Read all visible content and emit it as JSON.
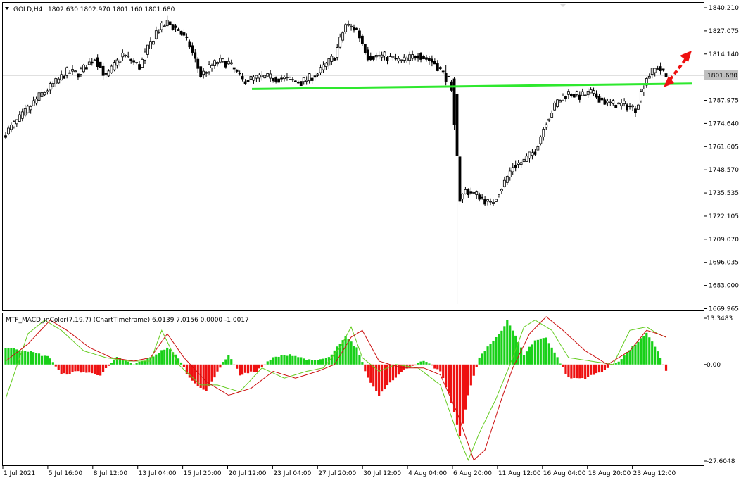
{
  "header": {
    "symbol": "GOLD,H4",
    "ohlc": "1802.630 1802.970 1801.160 1801.680",
    "menu_icon": "triangle-down-icon"
  },
  "indicator": {
    "label": "MTF_MACD_inColor(7,19,7) (ChartTimeframe) 6.0139 7.0156 0.0000 -1.0017"
  },
  "colors": {
    "bull": "#ffffff",
    "bear": "#000000",
    "wick": "#000000",
    "support_line": "#2ee82e",
    "arrow": "#ee1111",
    "hist_pos": "#18d018",
    "hist_neg": "#ee1111",
    "macd_line": "#66cc22",
    "signal_line": "#cc1111",
    "price_line": "#c0c0c0"
  },
  "chart_data": [
    {
      "type": "candlestick",
      "title": "GOLD,H4",
      "current_price": 1801.68,
      "current_price_label": "1801.680",
      "ylim": [
        1666.5,
        1842.5
      ],
      "y_ticks": [
        "1840.210",
        "1827.075",
        "1814.140",
        "1801.680",
        "1787.975",
        "1774.640",
        "1761.605",
        "1748.570",
        "1735.535",
        "1722.105",
        "1709.070",
        "1696.035",
        "1683.000",
        "1669.965"
      ],
      "x_ticks": [
        "1 Jul 2021",
        "5 Jul 16:00",
        "8 Jul 12:00",
        "13 Jul 04:00",
        "15 Jul 20:00",
        "20 Jul 12:00",
        "23 Jul 04:00",
        "27 Jul 20:00",
        "30 Jul 12:00",
        "4 Aug 04:00",
        "6 Aug 20:00",
        "11 Aug 12:00",
        "16 Aug 04:00",
        "18 Aug 20:00",
        "23 Aug 12:00"
      ],
      "anchors": [
        [
          0,
          1768
        ],
        [
          6,
          1778
        ],
        [
          12,
          1789
        ],
        [
          18,
          1797
        ],
        [
          22,
          1803
        ],
        [
          26,
          1802
        ],
        [
          32,
          1811
        ],
        [
          36,
          1800
        ],
        [
          42,
          1813
        ],
        [
          48,
          1806
        ],
        [
          54,
          1826
        ],
        [
          58,
          1831
        ],
        [
          62,
          1827
        ],
        [
          66,
          1818
        ],
        [
          70,
          1801
        ],
        [
          76,
          1809
        ],
        [
          80,
          1808
        ],
        [
          85,
          1798
        ],
        [
          92,
          1800
        ],
        [
          100,
          1799
        ],
        [
          106,
          1797
        ],
        [
          112,
          1802
        ],
        [
          118,
          1812
        ],
        [
          122,
          1830
        ],
        [
          126,
          1827
        ],
        [
          130,
          1812
        ],
        [
          136,
          1812
        ],
        [
          142,
          1809
        ],
        [
          148,
          1813
        ],
        [
          154,
          1808
        ],
        [
          157,
          1802
        ],
        [
          159,
          1798
        ],
        [
          160,
          1790
        ],
        [
          161,
          1772
        ],
        [
          162,
          1755
        ],
        [
          163,
          1730
        ],
        [
          165,
          1735
        ],
        [
          170,
          1732
        ],
        [
          174,
          1727
        ],
        [
          178,
          1737
        ],
        [
          182,
          1749
        ],
        [
          186,
          1752
        ],
        [
          190,
          1758
        ],
        [
          194,
          1775
        ],
        [
          198,
          1786
        ],
        [
          202,
          1791
        ],
        [
          206,
          1789
        ],
        [
          210,
          1791
        ],
        [
          216,
          1785
        ],
        [
          222,
          1784
        ],
        [
          226,
          1782
        ],
        [
          230,
          1800
        ],
        [
          234,
          1806
        ],
        [
          237,
          1800
        ]
      ],
      "support_line": {
        "start": [
          1800,
          0
        ],
        "end": [
          1778,
          115
        ]
      },
      "arrow_direction": "up"
    },
    {
      "type": "macd_histogram",
      "title": "MTF_MACD_inColor(7,19,7)",
      "ylim": [
        -29.5,
        15.0
      ],
      "y_ticks": [
        "13.3483",
        "0.00",
        "-27.6048"
      ],
      "hist_anchors": [
        [
          0,
          5
        ],
        [
          8,
          4
        ],
        [
          16,
          2
        ],
        [
          20,
          -3
        ],
        [
          26,
          -2
        ],
        [
          34,
          -3
        ],
        [
          40,
          2
        ],
        [
          46,
          0
        ],
        [
          52,
          2
        ],
        [
          58,
          5
        ],
        [
          62,
          2
        ],
        [
          66,
          -4
        ],
        [
          72,
          -8
        ],
        [
          76,
          -2
        ],
        [
          80,
          3
        ],
        [
          84,
          -3
        ],
        [
          90,
          -2
        ],
        [
          96,
          2
        ],
        [
          102,
          3
        ],
        [
          110,
          1
        ],
        [
          116,
          2
        ],
        [
          122,
          8
        ],
        [
          126,
          5
        ],
        [
          130,
          -4
        ],
        [
          134,
          -9
        ],
        [
          138,
          -5
        ],
        [
          144,
          -1
        ],
        [
          150,
          1
        ],
        [
          156,
          -2
        ],
        [
          160,
          -11
        ],
        [
          163,
          -21
        ],
        [
          166,
          -9
        ],
        [
          170,
          2
        ],
        [
          174,
          6
        ],
        [
          178,
          10
        ],
        [
          180,
          13
        ],
        [
          182,
          10
        ],
        [
          186,
          3
        ],
        [
          190,
          7
        ],
        [
          194,
          8
        ],
        [
          198,
          2
        ],
        [
          202,
          -4
        ],
        [
          208,
          -4
        ],
        [
          214,
          -2
        ],
        [
          220,
          1
        ],
        [
          226,
          6
        ],
        [
          230,
          9
        ],
        [
          234,
          4
        ],
        [
          237,
          -2
        ]
      ],
      "macd_anchors": [
        [
          0,
          -10
        ],
        [
          8,
          9
        ],
        [
          14,
          13
        ],
        [
          20,
          10
        ],
        [
          28,
          4
        ],
        [
          36,
          2
        ],
        [
          44,
          1
        ],
        [
          52,
          1
        ],
        [
          56,
          10
        ],
        [
          62,
          0
        ],
        [
          70,
          -6
        ],
        [
          76,
          -6
        ],
        [
          84,
          -8
        ],
        [
          92,
          -1
        ],
        [
          100,
          -4
        ],
        [
          108,
          -2
        ],
        [
          114,
          -1
        ],
        [
          120,
          5
        ],
        [
          124,
          11
        ],
        [
          128,
          2
        ],
        [
          134,
          -2
        ],
        [
          140,
          0
        ],
        [
          148,
          -1
        ],
        [
          156,
          -6
        ],
        [
          162,
          -20
        ],
        [
          166,
          -28
        ],
        [
          170,
          -20
        ],
        [
          176,
          -10
        ],
        [
          182,
          2
        ],
        [
          186,
          11
        ],
        [
          190,
          13
        ],
        [
          196,
          10
        ],
        [
          202,
          2
        ],
        [
          210,
          1
        ],
        [
          218,
          0
        ],
        [
          224,
          10
        ],
        [
          230,
          11
        ],
        [
          234,
          9
        ],
        [
          237,
          8
        ]
      ],
      "signal_anchors": [
        [
          0,
          1
        ],
        [
          8,
          6
        ],
        [
          16,
          13
        ],
        [
          22,
          10
        ],
        [
          30,
          5
        ],
        [
          38,
          2
        ],
        [
          46,
          1
        ],
        [
          52,
          2
        ],
        [
          58,
          9
        ],
        [
          64,
          2
        ],
        [
          72,
          -5
        ],
        [
          80,
          -9
        ],
        [
          88,
          -7
        ],
        [
          96,
          -2
        ],
        [
          104,
          -4
        ],
        [
          112,
          -2
        ],
        [
          118,
          0
        ],
        [
          124,
          8
        ],
        [
          128,
          10
        ],
        [
          134,
          1
        ],
        [
          142,
          -1
        ],
        [
          150,
          -1
        ],
        [
          156,
          -3
        ],
        [
          162,
          -14
        ],
        [
          168,
          -28
        ],
        [
          172,
          -25
        ],
        [
          178,
          -10
        ],
        [
          182,
          -1
        ],
        [
          188,
          9
        ],
        [
          194,
          14
        ],
        [
          200,
          10
        ],
        [
          208,
          4
        ],
        [
          216,
          0
        ],
        [
          224,
          4
        ],
        [
          230,
          10
        ],
        [
          234,
          9
        ],
        [
          237,
          8
        ]
      ]
    }
  ]
}
